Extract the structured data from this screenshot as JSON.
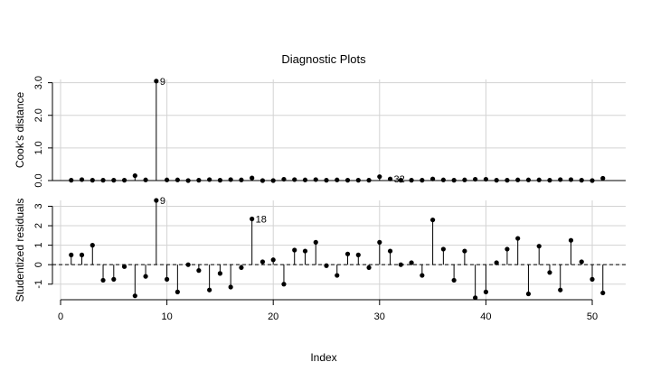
{
  "chart_data": {
    "type": "scatter",
    "title": "Diagnostic Plots",
    "xlabel": "Index",
    "x_ticks": [
      0,
      10,
      20,
      30,
      40,
      50
    ],
    "xlim": [
      0,
      52
    ],
    "grid": true,
    "panels": [
      {
        "name": "cooks",
        "ylabel": "Cook's distance",
        "ylim": [
          0,
          3.1
        ],
        "y_ticks": [
          "0.0",
          "1.0",
          "2.0",
          "3.0"
        ],
        "y_tick_values": [
          0,
          1,
          2,
          3
        ],
        "baseline": 0,
        "baseline_style": "solid",
        "values": [
          0.01,
          0.03,
          0.01,
          0.01,
          0.01,
          0.01,
          0.15,
          0.02,
          3.05,
          0.02,
          0.02,
          0.0,
          0.01,
          0.03,
          0.01,
          0.03,
          0.02,
          0.08,
          0.0,
          0.0,
          0.04,
          0.03,
          0.02,
          0.03,
          0.01,
          0.02,
          0.01,
          0.01,
          0.01,
          0.12,
          0.05,
          0.01,
          0.01,
          0.01,
          0.05,
          0.02,
          0.01,
          0.02,
          0.04,
          0.04,
          0.01,
          0.01,
          0.02,
          0.02,
          0.02,
          0.01,
          0.03,
          0.03,
          0.01,
          0.0,
          0.07
        ],
        "annotations": [
          {
            "index": 9,
            "label": "9"
          },
          {
            "index": 31,
            "label": "32"
          }
        ]
      },
      {
        "name": "residuals",
        "ylabel": "Studentized residuals",
        "ylim": [
          -1.8,
          3.3
        ],
        "y_ticks": [
          "-1",
          "0",
          "1",
          "2",
          "3"
        ],
        "y_tick_values": [
          -1,
          0,
          1,
          2,
          3
        ],
        "baseline": 0,
        "baseline_style": "dashed",
        "values": [
          0.5,
          0.5,
          1.0,
          -0.8,
          -0.75,
          -0.1,
          -1.6,
          -0.6,
          3.3,
          -0.75,
          -1.4,
          0.0,
          -0.3,
          -1.3,
          -0.45,
          -1.15,
          -0.15,
          2.35,
          0.15,
          0.25,
          -1.0,
          0.75,
          0.7,
          1.15,
          -0.05,
          -0.55,
          0.55,
          0.5,
          -0.15,
          1.15,
          0.7,
          0.0,
          0.1,
          -0.55,
          2.3,
          0.8,
          -0.8,
          0.7,
          -1.7,
          -1.4,
          0.1,
          0.8,
          1.35,
          -1.5,
          0.95,
          -0.4,
          -1.3,
          1.25,
          0.15,
          -0.75,
          -1.45
        ],
        "annotations": [
          {
            "index": 9,
            "label": "9"
          },
          {
            "index": 18,
            "label": "18"
          }
        ]
      }
    ]
  }
}
